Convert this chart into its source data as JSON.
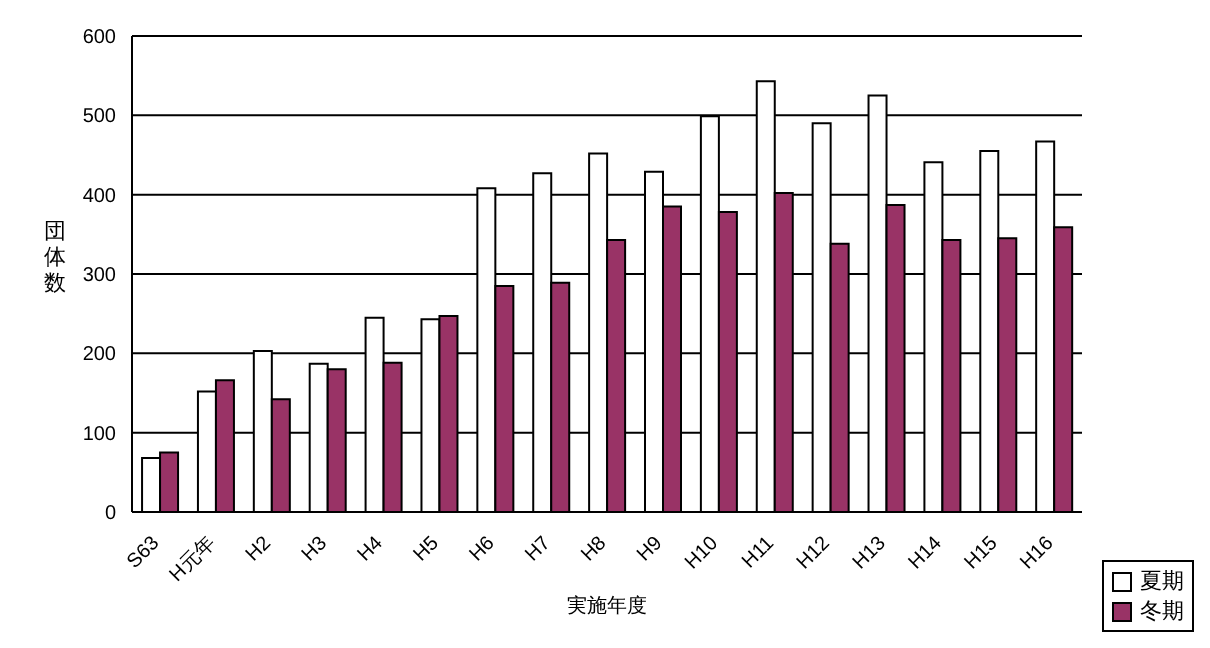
{
  "chart_data": {
    "type": "bar",
    "xlabel": "実施年度",
    "ylabel": "団体数",
    "categories": [
      "S63",
      "H元年",
      "H2",
      "H3",
      "H4",
      "H5",
      "H6",
      "H7",
      "H8",
      "H9",
      "H10",
      "H11",
      "H12",
      "H13",
      "H14",
      "H15",
      "H16"
    ],
    "series": [
      {
        "name": "夏期",
        "color": "#ffffff",
        "values": [
          68,
          152,
          203,
          187,
          245,
          243,
          408,
          427,
          452,
          429,
          499,
          543,
          490,
          525,
          441,
          455,
          467
        ]
      },
      {
        "name": "冬期",
        "color": "#993366",
        "values": [
          75,
          166,
          142,
          180,
          188,
          247,
          285,
          289,
          343,
          385,
          378,
          402,
          338,
          387,
          343,
          345,
          359
        ]
      }
    ],
    "ylim": [
      0,
      600
    ],
    "yticks": [
      0,
      100,
      200,
      300,
      400,
      500,
      600
    ],
    "grid": "y",
    "legend": "bottom right"
  }
}
